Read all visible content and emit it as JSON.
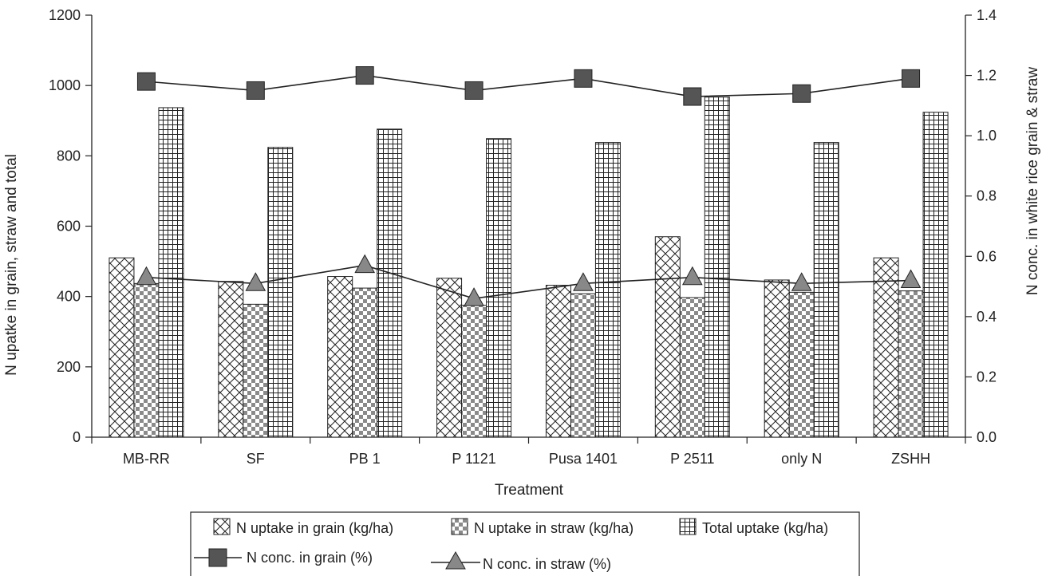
{
  "chart_data": {
    "type": "bar",
    "title": "",
    "xlabel": "Treatment",
    "ylabel": "N upatke in grain, straw and total",
    "y2label": "N conc. in white rice grain & straw",
    "categories": [
      "MB-RR",
      "SF",
      "PB 1",
      "P 1121",
      "Pusa 1401",
      "P 2511",
      "only N",
      "ZSHH"
    ],
    "ylim": [
      0,
      1200
    ],
    "y2lim": [
      0,
      1.4
    ],
    "yticks": [
      "0",
      "200",
      "400",
      "600",
      "800",
      "1000",
      "1200"
    ],
    "y2ticks": [
      "0.0",
      "0.2",
      "0.4",
      "0.6",
      "0.8",
      "1.0",
      "1.2",
      "1.4"
    ],
    "bar_series": [
      {
        "name": "N uptake in grain (kg/ha)",
        "pattern": "crosshatch",
        "values": [
          510,
          443,
          457,
          452,
          432,
          570,
          447,
          510
        ]
      },
      {
        "name": "N uptake in straw (kg/ha)",
        "pattern": "checker",
        "values": [
          437,
          378,
          424,
          375,
          408,
          397,
          412,
          416
        ]
      },
      {
        "name": "Total uptake (kg/ha)",
        "pattern": "grid",
        "values": [
          937,
          824,
          876,
          849,
          838,
          967,
          838,
          924
        ]
      }
    ],
    "line_series": [
      {
        "name": "N conc. in grain (%)",
        "marker": "square",
        "axis": "right",
        "values": [
          1.18,
          1.15,
          1.2,
          1.15,
          1.19,
          1.13,
          1.14,
          1.19
        ]
      },
      {
        "name": "N conc. in straw (%)",
        "marker": "triangle",
        "axis": "right",
        "values": [
          0.53,
          0.51,
          0.57,
          0.46,
          0.51,
          0.53,
          0.51,
          0.52
        ]
      }
    ],
    "grid": false,
    "legend_position": "bottom"
  }
}
